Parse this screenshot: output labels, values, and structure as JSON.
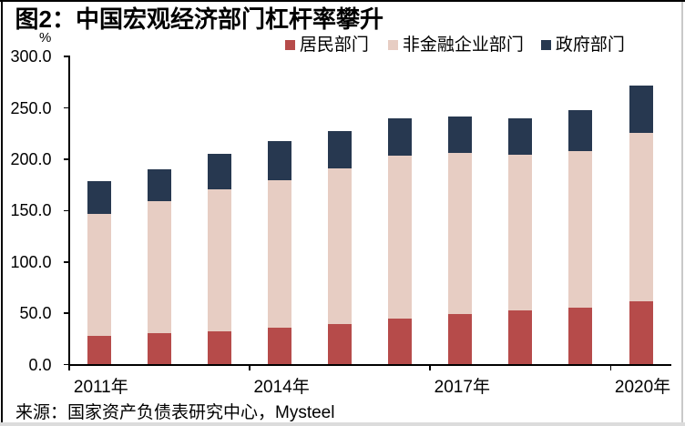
{
  "figure": {
    "title": "图2：中国宏观经济部门杠杆率攀升",
    "source_note": "来源：国家资产负债表研究中心，Mysteel"
  },
  "chart_data": {
    "type": "bar",
    "stacked": true,
    "title": "图2：中国宏观经济部门杠杆率攀升",
    "ylabel": "%",
    "xlabel": "",
    "unit": "%",
    "ylim": [
      0,
      300
    ],
    "grid": false,
    "legend_position": "top",
    "categories": [
      "2011年",
      "2012年",
      "2013年",
      "2014年",
      "2015年",
      "2016年",
      "2017年",
      "2018年",
      "2019年",
      "2020年"
    ],
    "visible_x_tick_labels": [
      "2011年",
      "2014年",
      "2017年",
      "2020年"
    ],
    "y_tick_labels": [
      "0.0",
      "50.0",
      "100.0",
      "150.0",
      "200.0",
      "250.0",
      "300.0"
    ],
    "y_tick_values": [
      0,
      50,
      100,
      150,
      200,
      250,
      300
    ],
    "series": [
      {
        "name": "居民部门",
        "color": "#b64b4a",
        "values": [
          27.3,
          30.2,
          32.4,
          35.5,
          38.8,
          44.0,
          48.4,
          52.3,
          55.3,
          61.4
        ]
      },
      {
        "name": "非金融企业部门",
        "color": "#e7cdc3",
        "values": [
          118.8,
          128.5,
          137.8,
          143.7,
          151.8,
          158.7,
          157.4,
          151.6,
          152.6,
          163.7
        ]
      },
      {
        "name": "政府部门",
        "color": "#273850",
        "values": [
          31.7,
          31.3,
          34.8,
          38.4,
          36.7,
          36.3,
          35.7,
          35.7,
          39.4,
          45.9
        ]
      }
    ]
  }
}
